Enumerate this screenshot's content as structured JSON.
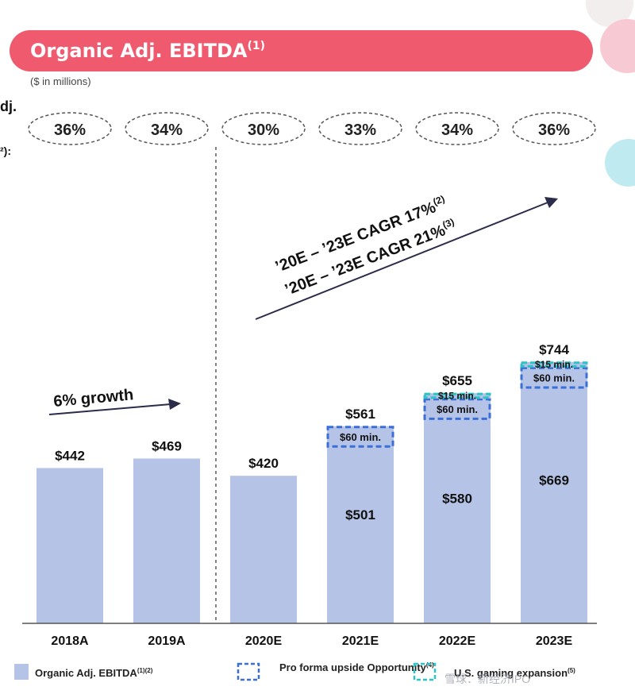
{
  "header": {
    "title": "Organic Adj. EBITDA",
    "title_sup": "(1)",
    "subtitle": "($ in millions)",
    "left_clip_1": "dj.",
    "left_clip_2": "²):"
  },
  "chart_data": {
    "type": "bar",
    "categories": [
      "2018A",
      "2019A",
      "2020E",
      "2021E",
      "2022E",
      "2023E"
    ],
    "margins": [
      "36%",
      "34%",
      "30%",
      "33%",
      "34%",
      "36%"
    ],
    "base_values": [
      442,
      469,
      420,
      501,
      580,
      669
    ],
    "base_labels": [
      "$442",
      "$469",
      "$420",
      "$501",
      "$580",
      "$669"
    ],
    "proforma_upside": [
      null,
      null,
      null,
      60,
      60,
      60
    ],
    "proforma_labels": [
      "",
      "",
      "",
      "$60 min.",
      "$60 min.",
      "$60 min."
    ],
    "expansion": [
      null,
      null,
      null,
      null,
      15,
      15
    ],
    "expansion_labels": [
      "",
      "",
      "",
      "",
      "$15 min.",
      "$15 min."
    ],
    "totals": [
      442,
      469,
      420,
      561,
      655,
      744
    ],
    "total_labels": [
      "$442",
      "$469",
      "$420",
      "$561",
      "$655",
      "$744"
    ],
    "annotations": {
      "growth": "6% growth",
      "cagr_1": "’20E – ’23E CAGR 17%",
      "cagr_1_sup": "(2)",
      "cagr_2": "’20E – ’23E CAGR 21%",
      "cagr_2_sup": "(3)"
    },
    "legend": [
      {
        "label": "Organic Adj. EBITDA",
        "sup": "(1)(2)"
      },
      {
        "label": "Pro forma upside Opportunity",
        "sup": "(4)"
      },
      {
        "label": "U.S. gaming expansion",
        "sup": "(5)"
      }
    ],
    "watermark": "雪球：新经济IPO",
    "colors": {
      "header": "#ef5a6f",
      "bar": "#b4c3e6",
      "upside_border": "#3a6fd8",
      "expansion_border": "#2bc4c4",
      "axis": "#555555",
      "circle_pink": "#f7c9d2",
      "circle_teal": "#bfeaf0"
    }
  }
}
